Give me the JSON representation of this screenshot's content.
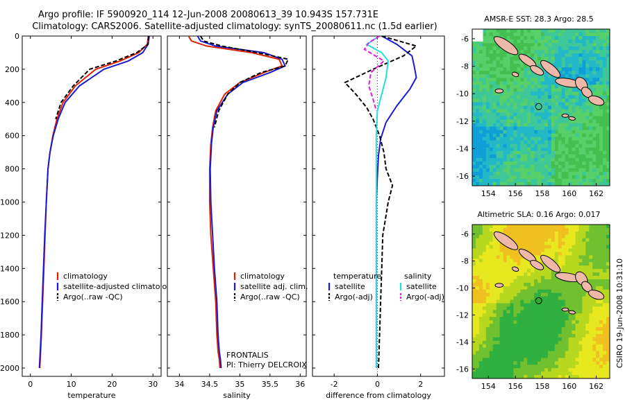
{
  "title": {
    "line1": "Argo profile: IF 5900920_114 12-Jun-2008 20080613_39 10.943S 157.731E",
    "line2": "Climatology: CARS2006. Satellite-adjusted climatology: synTS_20080611.nc (1.5d earlier)"
  },
  "footer_text": {
    "project": "FRONTALIS",
    "pi": "PI: Thierry DELCROIX",
    "credit": "CSIRO 19-Jun-2008 10:31:10"
  },
  "colors": {
    "climatology": "#dd2200",
    "satellite": "#1a1ad0",
    "argo": "#000000",
    "sat_salinity": "#22e0e0",
    "argo_salinity": "#e020e0",
    "land": "#f0b8a8"
  },
  "chart_data": [
    {
      "id": "temperature",
      "type": "line",
      "xlabel": "temperature",
      "ylabel": "",
      "xlim": [
        -2,
        32
      ],
      "ylim": [
        2050,
        0
      ],
      "xticks": [
        0,
        10,
        20,
        30
      ],
      "yticks": [
        0,
        200,
        400,
        600,
        800,
        1000,
        1200,
        1400,
        1600,
        1800,
        2000
      ],
      "legend": {
        "position": "lower-right",
        "entries": [
          "climatology",
          "satellite-adjusted climatology",
          "Argo(..raw -QC)"
        ]
      },
      "series": [
        {
          "name": "climatology",
          "color": "climatology",
          "dash": "solid",
          "x": [
            28.9,
            28.6,
            26.5,
            22,
            16,
            11,
            8,
            6.5,
            5.5,
            4.8,
            4.3,
            3.9,
            3.6,
            3.3,
            3.0,
            2.7,
            2.5,
            2.3
          ],
          "y": [
            0,
            50,
            100,
            150,
            200,
            300,
            400,
            500,
            600,
            700,
            800,
            1000,
            1200,
            1400,
            1600,
            1800,
            1900,
            2000
          ]
        },
        {
          "name": "satellite-adjusted climatology",
          "color": "satellite",
          "dash": "solid",
          "x": [
            29.1,
            28.8,
            27.5,
            24,
            18,
            12,
            8.5,
            6.8,
            5.6,
            4.8,
            4.3,
            3.9,
            3.5,
            3.2,
            2.9,
            2.6,
            2.4,
            2.2
          ],
          "y": [
            0,
            50,
            100,
            150,
            200,
            300,
            400,
            500,
            600,
            700,
            800,
            1000,
            1200,
            1400,
            1600,
            1800,
            1900,
            2000
          ]
        },
        {
          "name": "Argo(..raw -QC)",
          "color": "argo",
          "dash": "dashed",
          "x": [
            28.9,
            28.8,
            26,
            21,
            14.5,
            10.5,
            7.5,
            6.2
          ],
          "y": [
            0,
            50,
            100,
            150,
            200,
            300,
            400,
            500
          ]
        }
      ]
    },
    {
      "id": "salinity",
      "type": "line",
      "xlabel": "salinity",
      "ylabel": "",
      "xlim": [
        33.8,
        36.1
      ],
      "ylim": [
        2050,
        0
      ],
      "xticks": [
        34,
        34.5,
        35,
        35.5,
        36
      ],
      "yticks": [
        0,
        200,
        400,
        600,
        800,
        1000,
        1200,
        1400,
        1600,
        1800,
        2000
      ],
      "legend": {
        "position": "lower-right",
        "entries": [
          "climatology",
          "satellite adj. clim.",
          "Argo(..raw -QC)"
        ]
      },
      "series": [
        {
          "name": "climatology",
          "color": "climatology",
          "dash": "solid",
          "x": [
            34.15,
            34.2,
            34.45,
            35.2,
            35.65,
            35.7,
            35.4,
            35.0,
            34.75,
            34.6,
            34.55,
            34.52,
            34.5,
            34.5,
            34.52,
            34.56,
            34.6,
            34.62,
            34.64,
            34.66,
            34.67
          ],
          "y": [
            0,
            30,
            60,
            100,
            140,
            180,
            220,
            280,
            350,
            450,
            550,
            650,
            800,
            1000,
            1200,
            1400,
            1600,
            1800,
            1900,
            1950,
            2000
          ]
        },
        {
          "name": "satellite adj. clim.",
          "color": "satellite",
          "dash": "solid",
          "x": [
            34.3,
            34.35,
            34.6,
            35.4,
            35.7,
            35.75,
            35.5,
            35.05,
            34.8,
            34.62,
            34.56,
            34.53,
            34.51,
            34.52,
            34.55,
            34.58,
            34.62,
            34.64,
            34.66,
            34.68,
            34.69
          ],
          "y": [
            0,
            30,
            60,
            100,
            140,
            180,
            220,
            280,
            350,
            450,
            550,
            650,
            800,
            1000,
            1200,
            1400,
            1600,
            1800,
            1900,
            1950,
            2000
          ]
        },
        {
          "name": "Argo(..raw -QC)",
          "color": "argo",
          "dash": "dashed",
          "x": [
            34.35,
            34.4,
            34.7,
            35.3,
            35.8,
            35.75,
            35.35,
            35.0,
            34.8,
            34.65,
            34.58
          ],
          "y": [
            0,
            30,
            60,
            100,
            140,
            180,
            220,
            280,
            350,
            450,
            550
          ]
        }
      ]
    },
    {
      "id": "difference",
      "type": "line",
      "xlabel": "difference from climatology",
      "ylabel": "",
      "xlim": [
        -3,
        3.1
      ],
      "ylim": [
        2050,
        0
      ],
      "xticks": [
        -2,
        0,
        2
      ],
      "yticks": [
        0,
        200,
        400,
        600,
        800,
        1000,
        1200,
        1400,
        1600,
        1800,
        2000
      ],
      "legend": {
        "position": "lower-center",
        "groups": [
          {
            "title": "temperature",
            "entries": [
              "satellite",
              "Argo(-adj)"
            ]
          },
          {
            "title": "salinity",
            "entries": [
              "satellite",
              "Argo(-adj)"
            ]
          }
        ]
      },
      "series": [
        {
          "name": "temperature satellite",
          "color": "satellite",
          "dash": "solid",
          "x": [
            0.2,
            0.9,
            1.6,
            1.7,
            1.8,
            1.5,
            0.9,
            0.4,
            0.15,
            0.05,
            0,
            -0.05,
            -0.05,
            -0.05,
            -0.05,
            -0.05,
            -0.05
          ],
          "y": [
            0,
            50,
            120,
            180,
            250,
            320,
            420,
            520,
            620,
            720,
            850,
            1000,
            1200,
            1400,
            1600,
            1800,
            2000
          ]
        },
        {
          "name": "temperature Argo(-adj)",
          "color": "argo",
          "dash": "dashed",
          "x": [
            0.2,
            1.8,
            1.2,
            -0.2,
            -1.5,
            -1.0,
            -0.5,
            -0.2,
            0.1,
            0.3,
            0.4,
            0.7,
            0.5,
            0.25,
            0.2,
            0.15,
            0.1,
            0.05
          ],
          "y": [
            0,
            60,
            120,
            200,
            280,
            350,
            430,
            500,
            600,
            700,
            800,
            900,
            1000,
            1200,
            1400,
            1600,
            1800,
            2000
          ]
        },
        {
          "name": "salinity satellite",
          "color": "sat_salinity",
          "dash": "solid",
          "x": [
            0.1,
            -0.5,
            0.2,
            0.5,
            0.4,
            0.2,
            0.0,
            -0.05,
            -0.05,
            -0.05,
            -0.05,
            -0.05,
            -0.05,
            -0.05,
            -0.05
          ],
          "y": [
            0,
            50,
            100,
            150,
            250,
            350,
            450,
            600,
            800,
            1000,
            1200,
            1400,
            1600,
            1800,
            2000
          ]
        },
        {
          "name": "salinity Argo(-adj)",
          "color": "argo_salinity",
          "dash": "dashed",
          "x": [
            0.1,
            -0.4,
            -0.6,
            0.3,
            -0.3,
            -0.4,
            -0.2,
            -0.05
          ],
          "y": [
            0,
            40,
            80,
            150,
            220,
            300,
            380,
            450
          ]
        }
      ]
    },
    {
      "id": "sst_map",
      "type": "heatmap",
      "title": "AMSR-E SST: 28.3 Argo: 28.5",
      "xlim": [
        152.8,
        163
      ],
      "ylim": [
        -16.7,
        -5.3
      ],
      "xticks": [
        154,
        156,
        158,
        160,
        162
      ],
      "yticks": [
        -6,
        -8,
        -10,
        -12,
        -14,
        -16
      ],
      "marker": {
        "lon": 157.73,
        "lat": -10.94,
        "fill": "none"
      },
      "color_scale": [
        "#0e9ed8",
        "#22b8c8",
        "#3ec89a",
        "#58d06a",
        "#44c050"
      ]
    },
    {
      "id": "sla_map",
      "type": "heatmap",
      "title": "Altimetric SLA: 0.16 Argo: 0.017",
      "xlim": [
        152.8,
        163
      ],
      "ylim": [
        -16.7,
        -5.3
      ],
      "xticks": [
        154,
        156,
        158,
        160,
        162
      ],
      "yticks": [
        -6,
        -8,
        -10,
        -12,
        -14,
        -16
      ],
      "marker": {
        "lon": 157.73,
        "lat": -10.94,
        "fill": "#33aa33"
      },
      "color_scale": [
        "#30b040",
        "#70c030",
        "#b8d820",
        "#e8e820",
        "#f0c020"
      ]
    }
  ]
}
